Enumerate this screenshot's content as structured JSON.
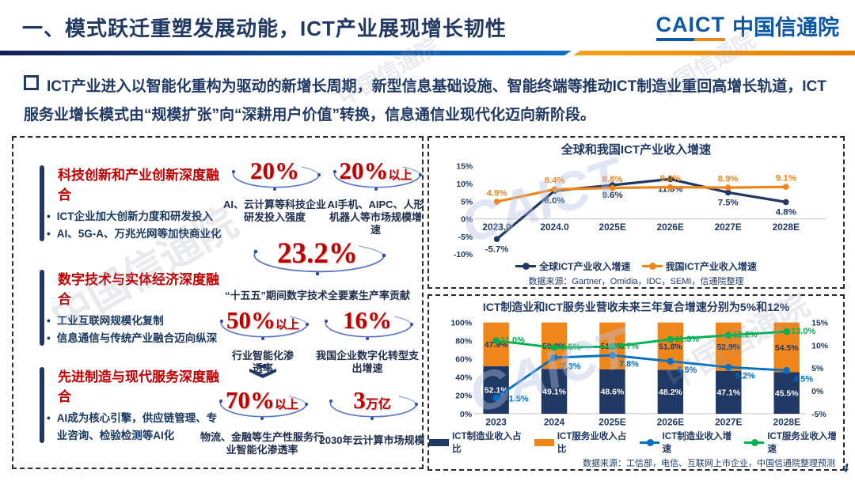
{
  "header": {
    "title": "一、模式跃迁重塑发展动能，ICT产业展现增长韧性",
    "logo_en": "CAICT",
    "logo_cn": "中国信通院"
  },
  "intro": "ICT产业进入以智能化重构为驱动的新增长周期，新型信息基础设施、智能终端等推动ICT制造业重回高增长轨道，ICT服务业增长模式由“规模扩张”向“深耕用户价值”转换，信息通信业现代化迈向新阶段。",
  "left_panel": {
    "sections": [
      {
        "title": "科技创新和产业创新深度融合",
        "bullets": [
          "ICT企业加大创新力度和研发投入",
          "AI、5G-A、万兆光网等加快商业化"
        ]
      },
      {
        "title": "数字技术与实体经济深度融合",
        "bullets": [
          "工业互联网规模化复制",
          "信息通信与传统产业融合迈向纵深"
        ]
      },
      {
        "title": "先进制造与现代服务深度融合",
        "bullets": [
          "AI成为核心引擎，供应链管理、专业咨询、检验检测等AI化"
        ]
      }
    ],
    "stats": [
      {
        "value": "20%",
        "suffix": "",
        "caption": "AI、云计算等科技企业研发投入强度"
      },
      {
        "value": "20%",
        "suffix": "以上",
        "caption": "AI手机、AIPC、人形机器人等市场规模增速"
      },
      {
        "value": "23.2%",
        "suffix": "",
        "caption": "“十五五”期间数字技术全要素生产率贡献"
      },
      {
        "value": "50%",
        "suffix": "以上",
        "caption": "行业智能化渗透率"
      },
      {
        "value": "16%",
        "suffix": "",
        "caption": "我国企业数字化转型支出增速"
      },
      {
        "value": "70%",
        "suffix": "以上",
        "caption": "物流、金融等生产性服务行业智能化渗透率"
      },
      {
        "value": "3",
        "suffix": "万亿",
        "caption": "2030年云计算市场规模"
      }
    ]
  },
  "chart_data": [
    {
      "type": "line",
      "title": "全球和我国ICT产业收入增速",
      "categories": [
        "2023.0",
        "2024.0",
        "2025E",
        "2026E",
        "2027E",
        "2028E"
      ],
      "series": [
        {
          "name": "全球ICT产业收入增速",
          "color": "#1F3864",
          "values": [
            -5.7,
            8.0,
            9.6,
            11.3,
            7.5,
            4.8
          ]
        },
        {
          "name": "我国ICT产业收入增速",
          "color": "#F0861A",
          "values": [
            4.9,
            8.4,
            8.8,
            9.0,
            8.9,
            9.1
          ]
        }
      ],
      "ylim": [
        -10,
        15
      ],
      "yticks": [
        15,
        10,
        5,
        0,
        -5,
        -10
      ],
      "legend_position": "bottom",
      "grid": false,
      "source": "数据来源：Gartner，Omidia，IDC，SEMI，信通院整理"
    },
    {
      "type": "combo",
      "title": "ICT制造业和ICT服务业营收未来三年复合增速分别为5%和12%",
      "categories": [
        "2023",
        "2024",
        "2025E",
        "2026E",
        "2027E",
        "2028E"
      ],
      "bar_series": [
        {
          "name": "ICT制造业收入占比",
          "color": "#1F3864",
          "values": [
            52.1,
            49.1,
            48.6,
            48.2,
            47.1,
            45.5
          ]
        },
        {
          "name": "ICT服务业收入占比",
          "color": "#F0861A",
          "values": [
            47.9,
            50.9,
            51.4,
            51.8,
            52.9,
            54.5
          ]
        }
      ],
      "line_series": [
        {
          "name": "ICT制造业收入增速",
          "color": "#0070C0",
          "values": [
            -1.5,
            7.3,
            7.8,
            6.5,
            5.2,
            4.5
          ]
        },
        {
          "name": "ICT服务业收入增速",
          "color": "#00B050",
          "values": [
            11.0,
            9.5,
            9.7,
            11.3,
            12.2,
            13.0
          ]
        }
      ],
      "left_ylim": [
        0,
        100
      ],
      "right_ylim": [
        -5,
        15
      ],
      "left_yticks": [
        100,
        80,
        60,
        40,
        20,
        0
      ],
      "right_yticks": [
        15,
        10,
        5,
        0,
        -5
      ],
      "legend_position": "bottom",
      "grid": false,
      "source": "数据来源：工信部，电信、互联网上市企业，中国信通院整理预测"
    }
  ],
  "watermark": {
    "cn": "中国信通院",
    "en": "CAICT"
  },
  "page_number": "4"
}
